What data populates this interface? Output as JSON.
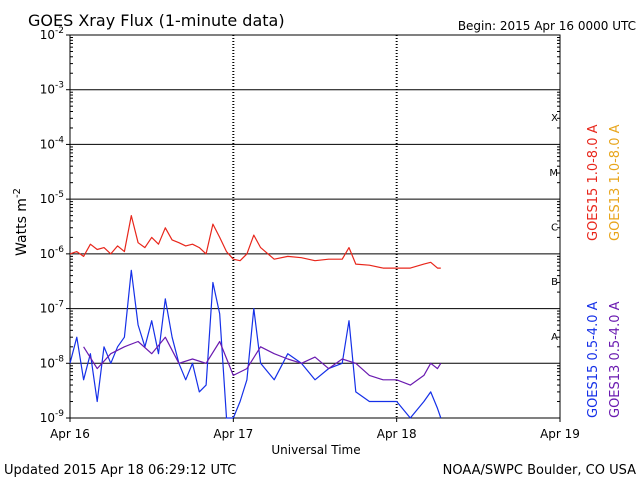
{
  "chart_data": {
    "type": "line",
    "title": "GOES Xray Flux (1-minute data)",
    "begin_label": "Begin:  2015 Apr 16 0000 UTC",
    "ylabel_main": "Watts m",
    "ylabel_sup": "-2",
    "xlabel": "Universal Time",
    "y_scale": "log",
    "ylim": [
      1e-09,
      0.01
    ],
    "y_ticks": [
      {
        "value": 0.01,
        "base": "10",
        "exp": "-2"
      },
      {
        "value": 0.001,
        "base": "10",
        "exp": "-3"
      },
      {
        "value": 0.0001,
        "base": "10",
        "exp": "-4"
      },
      {
        "value": 1e-05,
        "base": "10",
        "exp": "-5"
      },
      {
        "value": 1e-06,
        "base": "10",
        "exp": "-6"
      },
      {
        "value": 1e-07,
        "base": "10",
        "exp": "-7"
      },
      {
        "value": 1e-08,
        "base": "10",
        "exp": "-8"
      },
      {
        "value": 1e-09,
        "base": "10",
        "exp": "-9"
      }
    ],
    "xlim": [
      "2015-04-16T00:00",
      "2015-04-19T00:00"
    ],
    "x_ticks": [
      {
        "value": "2015-04-16T00:00",
        "label": "Apr 16"
      },
      {
        "value": "2015-04-17T00:00",
        "label": "Apr 17"
      },
      {
        "value": "2015-04-18T00:00",
        "label": "Apr 18"
      },
      {
        "value": "2015-04-19T00:00",
        "label": "Apr 19"
      }
    ],
    "flare_classes": [
      {
        "label": "X",
        "value": 0.0001
      },
      {
        "label": "M",
        "value": 1e-05
      },
      {
        "label": "C",
        "value": 1e-06
      },
      {
        "label": "B",
        "value": 1e-07
      },
      {
        "label": "A",
        "value": 1e-08
      }
    ],
    "grid": "horizontal lines at each decade; dotted vertical lines at day boundaries",
    "legend_position": "right, vertical text",
    "series": [
      {
        "name": "GOES15 1.0-8.0 A",
        "color": "#e8261b",
        "x": [
          "2015-04-16T00:00",
          "2015-04-16T01:00",
          "2015-04-16T02:00",
          "2015-04-16T03:00",
          "2015-04-16T04:00",
          "2015-04-16T05:00",
          "2015-04-16T06:00",
          "2015-04-16T07:00",
          "2015-04-16T08:00",
          "2015-04-16T09:00",
          "2015-04-16T10:00",
          "2015-04-16T11:00",
          "2015-04-16T12:00",
          "2015-04-16T13:00",
          "2015-04-16T14:00",
          "2015-04-16T15:00",
          "2015-04-16T16:00",
          "2015-04-16T17:00",
          "2015-04-16T18:00",
          "2015-04-16T19:00",
          "2015-04-16T20:00",
          "2015-04-16T21:00",
          "2015-04-16T22:00",
          "2015-04-16T23:00",
          "2015-04-17T00:00",
          "2015-04-17T01:00",
          "2015-04-17T02:00",
          "2015-04-17T03:00",
          "2015-04-17T04:00",
          "2015-04-17T06:00",
          "2015-04-17T08:00",
          "2015-04-17T10:00",
          "2015-04-17T12:00",
          "2015-04-17T14:00",
          "2015-04-17T16:00",
          "2015-04-17T17:00",
          "2015-04-17T18:00",
          "2015-04-17T20:00",
          "2015-04-17T22:00",
          "2015-04-18T00:00",
          "2015-04-18T02:00",
          "2015-04-18T04:00",
          "2015-04-18T05:00",
          "2015-04-18T06:00",
          "2015-04-18T06:29"
        ],
        "y": [
          1e-06,
          1.1e-06,
          9e-07,
          1.5e-06,
          1.2e-06,
          1.3e-06,
          1e-06,
          1.4e-06,
          1.1e-06,
          5e-06,
          1.6e-06,
          1.3e-06,
          2e-06,
          1.5e-06,
          3e-06,
          1.8e-06,
          1.6e-06,
          1.4e-06,
          1.5e-06,
          1.3e-06,
          1e-06,
          3.5e-06,
          2e-06,
          1.1e-06,
          8e-07,
          7.5e-07,
          1e-06,
          2.2e-06,
          1.3e-06,
          8e-07,
          9e-07,
          8.5e-07,
          7.5e-07,
          8e-07,
          8e-07,
          1.3e-06,
          6.5e-07,
          6.2e-07,
          5.5e-07,
          5.5e-07,
          5.5e-07,
          6.5e-07,
          7e-07,
          5.5e-07,
          5.5e-07
        ]
      },
      {
        "name": "GOES13 1.0-8.0 A",
        "color": "#e8a51b",
        "x": [],
        "y": []
      },
      {
        "name": "GOES15 0.5-4.0 A",
        "color": "#1530e8",
        "x": [
          "2015-04-16T00:00",
          "2015-04-16T01:00",
          "2015-04-16T02:00",
          "2015-04-16T03:00",
          "2015-04-16T04:00",
          "2015-04-16T05:00",
          "2015-04-16T06:00",
          "2015-04-16T07:00",
          "2015-04-16T08:00",
          "2015-04-16T09:00",
          "2015-04-16T10:00",
          "2015-04-16T11:00",
          "2015-04-16T12:00",
          "2015-04-16T13:00",
          "2015-04-16T14:00",
          "2015-04-16T15:00",
          "2015-04-16T16:00",
          "2015-04-16T17:00",
          "2015-04-16T18:00",
          "2015-04-16T19:00",
          "2015-04-16T20:00",
          "2015-04-16T21:00",
          "2015-04-16T22:00",
          "2015-04-16T23:00",
          "2015-04-17T00:00",
          "2015-04-17T01:00",
          "2015-04-17T02:00",
          "2015-04-17T03:00",
          "2015-04-17T04:00",
          "2015-04-17T06:00",
          "2015-04-17T08:00",
          "2015-04-17T10:00",
          "2015-04-17T12:00",
          "2015-04-17T14:00",
          "2015-04-17T16:00",
          "2015-04-17T17:00",
          "2015-04-17T18:00",
          "2015-04-17T20:00",
          "2015-04-17T22:00",
          "2015-04-18T00:00",
          "2015-04-18T02:00",
          "2015-04-18T04:00",
          "2015-04-18T05:00",
          "2015-04-18T06:00",
          "2015-04-18T06:29"
        ],
        "y": [
          1e-08,
          3e-08,
          5e-09,
          1.5e-08,
          2e-09,
          2e-08,
          1e-08,
          2e-08,
          3e-08,
          5e-07,
          5e-08,
          2e-08,
          6e-08,
          1.5e-08,
          1.5e-07,
          3e-08,
          1e-08,
          5e-09,
          1e-08,
          3e-09,
          4e-09,
          3e-07,
          8e-08,
          1e-09,
          1e-09,
          2e-09,
          5e-09,
          1e-07,
          1e-08,
          5e-09,
          1.5e-08,
          1e-08,
          5e-09,
          8e-09,
          1e-08,
          6e-08,
          3e-09,
          2e-09,
          2e-09,
          2e-09,
          1e-09,
          2e-09,
          3e-09,
          1.5e-09,
          1e-09
        ]
      },
      {
        "name": "GOES13 0.5-4.0 A",
        "color": "#6a1ab0",
        "x": [
          "2015-04-16T02:00",
          "2015-04-16T04:00",
          "2015-04-16T06:00",
          "2015-04-16T08:00",
          "2015-04-16T10:00",
          "2015-04-16T12:00",
          "2015-04-16T14:00",
          "2015-04-16T16:00",
          "2015-04-16T18:00",
          "2015-04-16T20:00",
          "2015-04-16T22:00",
          "2015-04-17T00:00",
          "2015-04-17T02:00",
          "2015-04-17T04:00",
          "2015-04-17T06:00",
          "2015-04-17T08:00",
          "2015-04-17T10:00",
          "2015-04-17T12:00",
          "2015-04-17T14:00",
          "2015-04-17T16:00",
          "2015-04-17T18:00",
          "2015-04-17T20:00",
          "2015-04-17T22:00",
          "2015-04-18T00:00",
          "2015-04-18T02:00",
          "2015-04-18T04:00",
          "2015-04-18T05:00",
          "2015-04-18T06:00",
          "2015-04-18T06:29"
        ],
        "y": [
          2e-08,
          8e-09,
          1.5e-08,
          2e-08,
          2.5e-08,
          1.5e-08,
          3e-08,
          1e-08,
          1.2e-08,
          1e-08,
          2.5e-08,
          6e-09,
          8e-09,
          2e-08,
          1.5e-08,
          1.2e-08,
          1e-08,
          1.3e-08,
          8e-09,
          1.2e-08,
          1e-08,
          6e-09,
          5e-09,
          5e-09,
          4e-09,
          6e-09,
          1e-08,
          8e-09,
          1e-08
        ]
      }
    ]
  },
  "footer": {
    "updated": "Updated 2015 Apr 18 06:29:12 UTC",
    "credit": "NOAA/SWPC Boulder, CO USA"
  }
}
